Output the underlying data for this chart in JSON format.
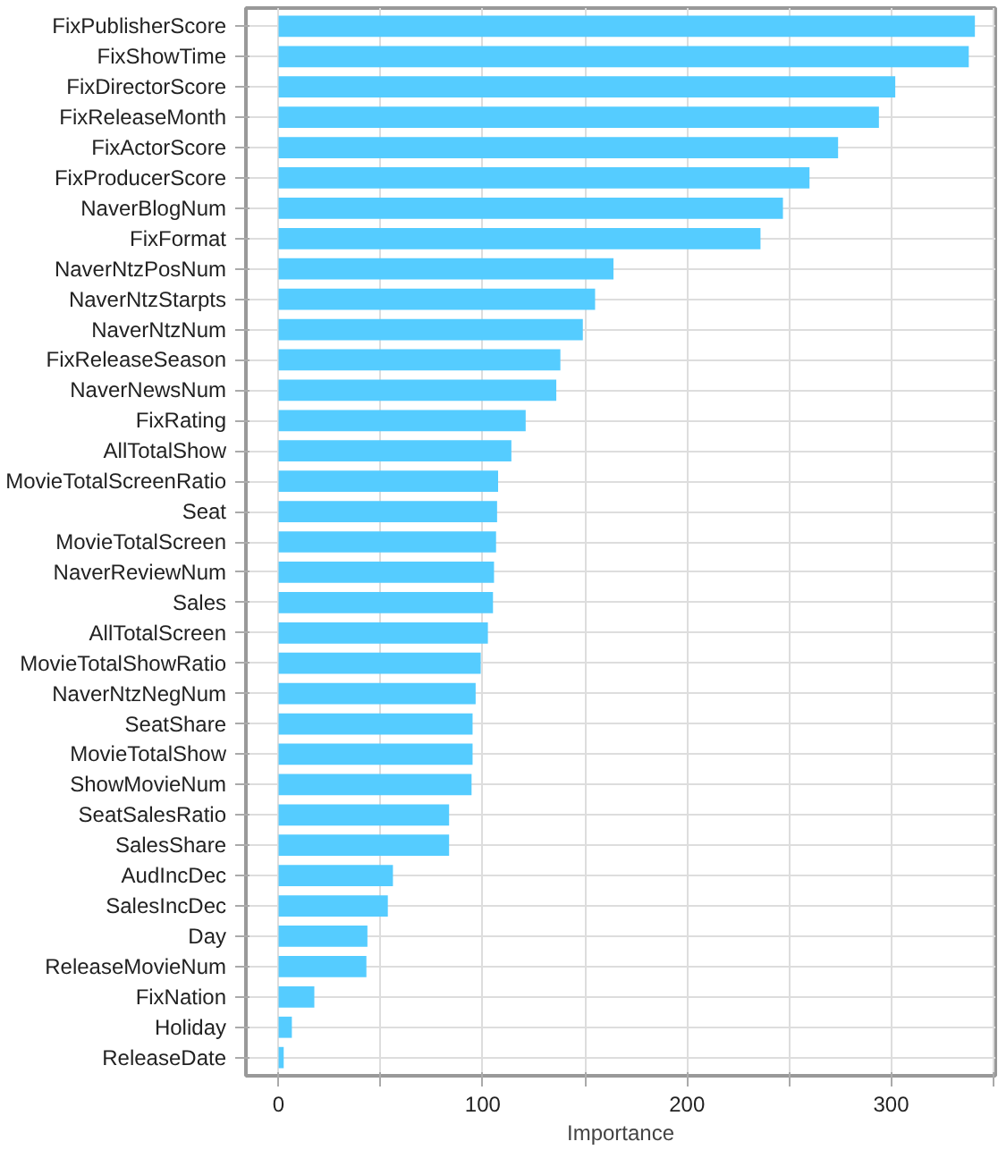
{
  "chart_data": {
    "type": "bar",
    "orientation": "horizontal",
    "xlabel": "Importance",
    "categories": [
      "FixPublisherScore",
      "FixShowTime",
      "FixDirectorScore",
      "FixReleaseMonth",
      "FixActorScore",
      "FixProducerScore",
      "NaverBlogNum",
      "FixFormat",
      "NaverNtzPosNum",
      "NaverNtzStarpts",
      "NaverNtzNum",
      "FixReleaseSeason",
      "NaverNewsNum",
      "FixRating",
      "AllTotalShow",
      "MovieTotalScreenRatio",
      "Seat",
      "MovieTotalScreen",
      "NaverReviewNum",
      "Sales",
      "AllTotalScreen",
      "MovieTotalShowRatio",
      "NaverNtzNegNum",
      "SeatShare",
      "MovieTotalShow",
      "ShowMovieNum",
      "SeatSalesRatio",
      "SalesShare",
      "AudIncDec",
      "SalesIncDec",
      "Day",
      "ReleaseMovieNum",
      "FixNation",
      "Holiday",
      "ReleaseDate"
    ],
    "values": [
      341,
      338,
      302,
      294,
      274,
      260,
      247,
      236,
      164,
      155,
      149,
      138,
      136,
      121,
      114,
      107.5,
      107,
      106.5,
      105.5,
      105,
      102.5,
      99,
      96.5,
      95,
      95,
      94.5,
      83.5,
      83.5,
      56,
      53.5,
      43.5,
      43,
      17.5,
      6.5,
      2.5
    ],
    "color": "#55ccff",
    "xlim": [
      -16,
      351
    ],
    "xticks": [
      0,
      {
        "value": 50,
        "label": null
      },
      100,
      {
        "value": 150,
        "label": null
      },
      200,
      {
        "value": 250,
        "label": null
      },
      300,
      {
        "value": 350,
        "label": null
      }
    ],
    "grid": true
  }
}
